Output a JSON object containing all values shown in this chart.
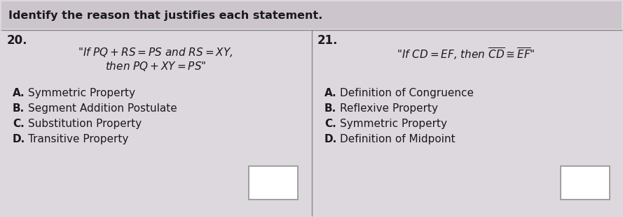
{
  "title": "Identify the reason that justifies each statement.",
  "q20_num": "20.",
  "q21_num": "21.",
  "q20_line1": "\"If $PQ + RS = PS$ and $RS = XY$,",
  "q20_line2": "then $PQ + XY = PS$\"",
  "q21_line": "\"If $CD = EF$, then $\\overline{CD} \\cong \\overline{EF}$\"",
  "q20_options": [
    [
      "A.",
      "  Symmetric Property"
    ],
    [
      "B.",
      "  Segment Addition Postulate"
    ],
    [
      "C.",
      "  Substitution Property"
    ],
    [
      "D.",
      "  Transitive Property"
    ]
  ],
  "q21_options": [
    [
      "A.",
      "  Definition of Congruence"
    ],
    [
      "B.",
      "  Reflexive Property"
    ],
    [
      "C.",
      "  Symmetric Property"
    ],
    [
      "D.",
      "  Definition of Midpoint"
    ]
  ],
  "outer_bg": "#c8c0cc",
  "card_bg": "#ddd8dd",
  "cell_bg": "#d8d2d8",
  "title_bg": "#ccc5cc",
  "border_color": "#999999",
  "divider_color": "#888888",
  "text_color": "#1a1a1a",
  "white": "#ffffff",
  "title_fontsize": 11.5,
  "num_fontsize": 12,
  "statement_fontsize": 11,
  "option_fontsize": 11
}
